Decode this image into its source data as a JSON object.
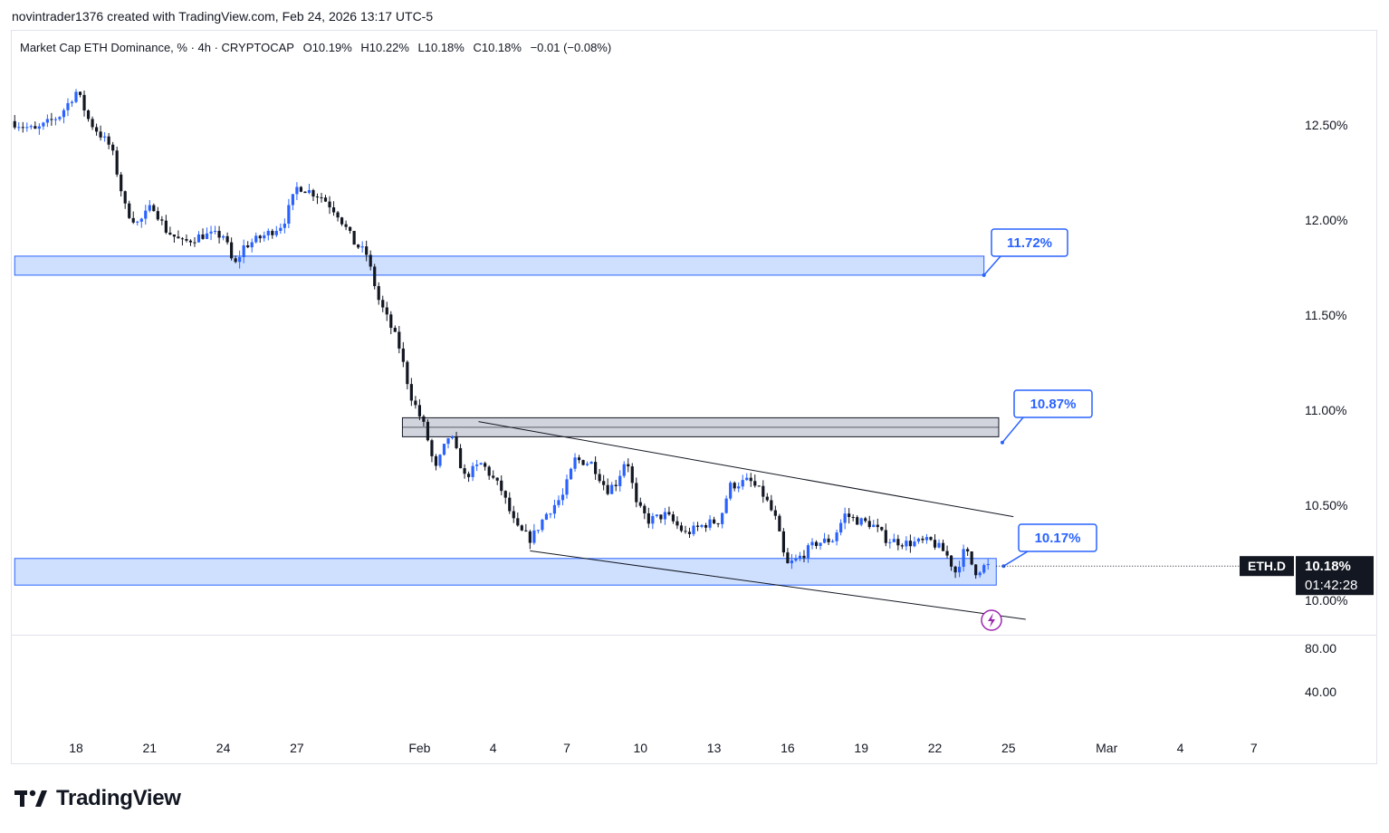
{
  "header": {
    "credit": "novintrader1376 created with TradingView.com, Feb 24, 2026 13:17 UTC-5"
  },
  "legend": {
    "title": "Market Cap ETH Dominance, % · 4h · CRYPTOCAP",
    "open": "O10.19%",
    "high": "H10.22%",
    "low": "L10.18%",
    "close": "C10.18%",
    "change": "−0.01 (−0.08%)"
  },
  "brand": {
    "name": "TradingView"
  },
  "colors": {
    "up": "#2962ff",
    "down": "#131722",
    "zone": "#cfe0ff",
    "zone_border": "#2962ff",
    "grey_zone": "#d1d4dc",
    "callout": "#2962ff",
    "lightning": "#9c27b0"
  },
  "chart_data": {
    "type": "candlestick",
    "symbol": "ETH.D",
    "interval": "4h",
    "price_axis": {
      "ticks": [
        "12.50%",
        "12.00%",
        "11.50%",
        "11.00%",
        "10.50%",
        "10.00%"
      ],
      "range": [
        9.8,
        12.8
      ]
    },
    "indicator_axis": {
      "ticks": [
        "80.00",
        "40.00"
      ],
      "range": [
        0,
        100
      ]
    },
    "x_axis": {
      "ticks": [
        {
          "label": "18",
          "day": 0
        },
        {
          "label": "21",
          "day": 3
        },
        {
          "label": "24",
          "day": 6
        },
        {
          "label": "27",
          "day": 9
        },
        {
          "label": "Feb",
          "day": 14
        },
        {
          "label": "4",
          "day": 17
        },
        {
          "label": "7",
          "day": 20
        },
        {
          "label": "10",
          "day": 23
        },
        {
          "label": "13",
          "day": 26
        },
        {
          "label": "16",
          "day": 29
        },
        {
          "label": "19",
          "day": 32
        },
        {
          "label": "22",
          "day": 35
        },
        {
          "label": "25",
          "day": 38
        },
        {
          "label": "Mar",
          "day": 42
        },
        {
          "label": "4",
          "day": 45
        },
        {
          "label": "7",
          "day": 48
        }
      ],
      "start_day": -2.5,
      "end_day": 49
    },
    "last_price": {
      "symbol_label": "ETH.D",
      "price": "10.18%",
      "countdown": "01:42:28",
      "value": 10.18
    },
    "anchors": [
      {
        "day": -2.5,
        "price": 12.52
      },
      {
        "day": -1.5,
        "price": 12.47
      },
      {
        "day": -0.5,
        "price": 12.55
      },
      {
        "day": 0.2,
        "price": 12.68
      },
      {
        "day": 0.7,
        "price": 12.52
      },
      {
        "day": 1.6,
        "price": 12.38
      },
      {
        "day": 2.2,
        "price": 12.05
      },
      {
        "day": 2.7,
        "price": 11.98
      },
      {
        "day": 3.3,
        "price": 12.08
      },
      {
        "day": 3.8,
        "price": 11.95
      },
      {
        "day": 4.5,
        "price": 11.88
      },
      {
        "day": 5.3,
        "price": 11.92
      },
      {
        "day": 6.2,
        "price": 11.92
      },
      {
        "day": 6.6,
        "price": 11.75
      },
      {
        "day": 7.0,
        "price": 11.86
      },
      {
        "day": 8.0,
        "price": 11.93
      },
      {
        "day": 8.6,
        "price": 11.98
      },
      {
        "day": 9.2,
        "price": 12.18
      },
      {
        "day": 10.2,
        "price": 12.12
      },
      {
        "day": 10.8,
        "price": 12.04
      },
      {
        "day": 11.5,
        "price": 11.88
      },
      {
        "day": 12.0,
        "price": 11.82
      },
      {
        "day": 12.5,
        "price": 11.58
      },
      {
        "day": 13.3,
        "price": 11.35
      },
      {
        "day": 13.8,
        "price": 11.08
      },
      {
        "day": 14.4,
        "price": 10.9
      },
      {
        "day": 14.8,
        "price": 10.68
      },
      {
        "day": 15.4,
        "price": 10.88
      },
      {
        "day": 16.0,
        "price": 10.65
      },
      {
        "day": 16.7,
        "price": 10.72
      },
      {
        "day": 17.5,
        "price": 10.58
      },
      {
        "day": 18.1,
        "price": 10.38
      },
      {
        "day": 18.7,
        "price": 10.32
      },
      {
        "day": 19.3,
        "price": 10.45
      },
      {
        "day": 20.0,
        "price": 10.55
      },
      {
        "day": 20.5,
        "price": 10.74
      },
      {
        "day": 21.2,
        "price": 10.72
      },
      {
        "day": 21.8,
        "price": 10.58
      },
      {
        "day": 22.2,
        "price": 10.62
      },
      {
        "day": 22.6,
        "price": 10.76
      },
      {
        "day": 23.0,
        "price": 10.5
      },
      {
        "day": 23.5,
        "price": 10.42
      },
      {
        "day": 24.2,
        "price": 10.45
      },
      {
        "day": 25.0,
        "price": 10.35
      },
      {
        "day": 25.8,
        "price": 10.4
      },
      {
        "day": 26.4,
        "price": 10.42
      },
      {
        "day": 26.8,
        "price": 10.6
      },
      {
        "day": 27.6,
        "price": 10.63
      },
      {
        "day": 28.2,
        "price": 10.55
      },
      {
        "day": 28.7,
        "price": 10.42
      },
      {
        "day": 29.1,
        "price": 10.18
      },
      {
        "day": 29.6,
        "price": 10.22
      },
      {
        "day": 30.3,
        "price": 10.3
      },
      {
        "day": 31.0,
        "price": 10.32
      },
      {
        "day": 31.5,
        "price": 10.45
      },
      {
        "day": 32.0,
        "price": 10.42
      },
      {
        "day": 32.6,
        "price": 10.4
      },
      {
        "day": 33.2,
        "price": 10.32
      },
      {
        "day": 34.0,
        "price": 10.3
      },
      {
        "day": 35.0,
        "price": 10.31
      },
      {
        "day": 35.6,
        "price": 10.25
      },
      {
        "day": 36.0,
        "price": 10.15
      },
      {
        "day": 36.4,
        "price": 10.27
      },
      {
        "day": 36.8,
        "price": 10.15
      },
      {
        "day": 37.2,
        "price": 10.18
      }
    ],
    "zones": [
      {
        "name": "upper-support-zone",
        "label": "11.72%",
        "price_top": 11.81,
        "price_bottom": 11.71,
        "day_start": -2.5,
        "day_end": 37.0,
        "style": "blue"
      },
      {
        "name": "resistance-zone",
        "label": "10.87%",
        "price_top": 10.96,
        "price_bottom": 10.86,
        "day_start": 13.3,
        "day_end": 37.6,
        "style": "grey"
      },
      {
        "name": "lower-support-zone",
        "label": "10.17%",
        "price_top": 10.22,
        "price_bottom": 10.08,
        "day_start": -2.5,
        "day_end": 37.5,
        "style": "blue"
      }
    ],
    "trendlines": [
      {
        "name": "upper-trendline",
        "from": {
          "day": 16.4,
          "price": 10.94
        },
        "to": {
          "day": 38.2,
          "price": 10.44
        }
      },
      {
        "name": "lower-trendline",
        "from": {
          "day": 18.5,
          "price": 10.26
        },
        "to": {
          "day": 38.7,
          "price": 9.9
        }
      }
    ],
    "indicator_series": {
      "name": "",
      "values": []
    }
  }
}
